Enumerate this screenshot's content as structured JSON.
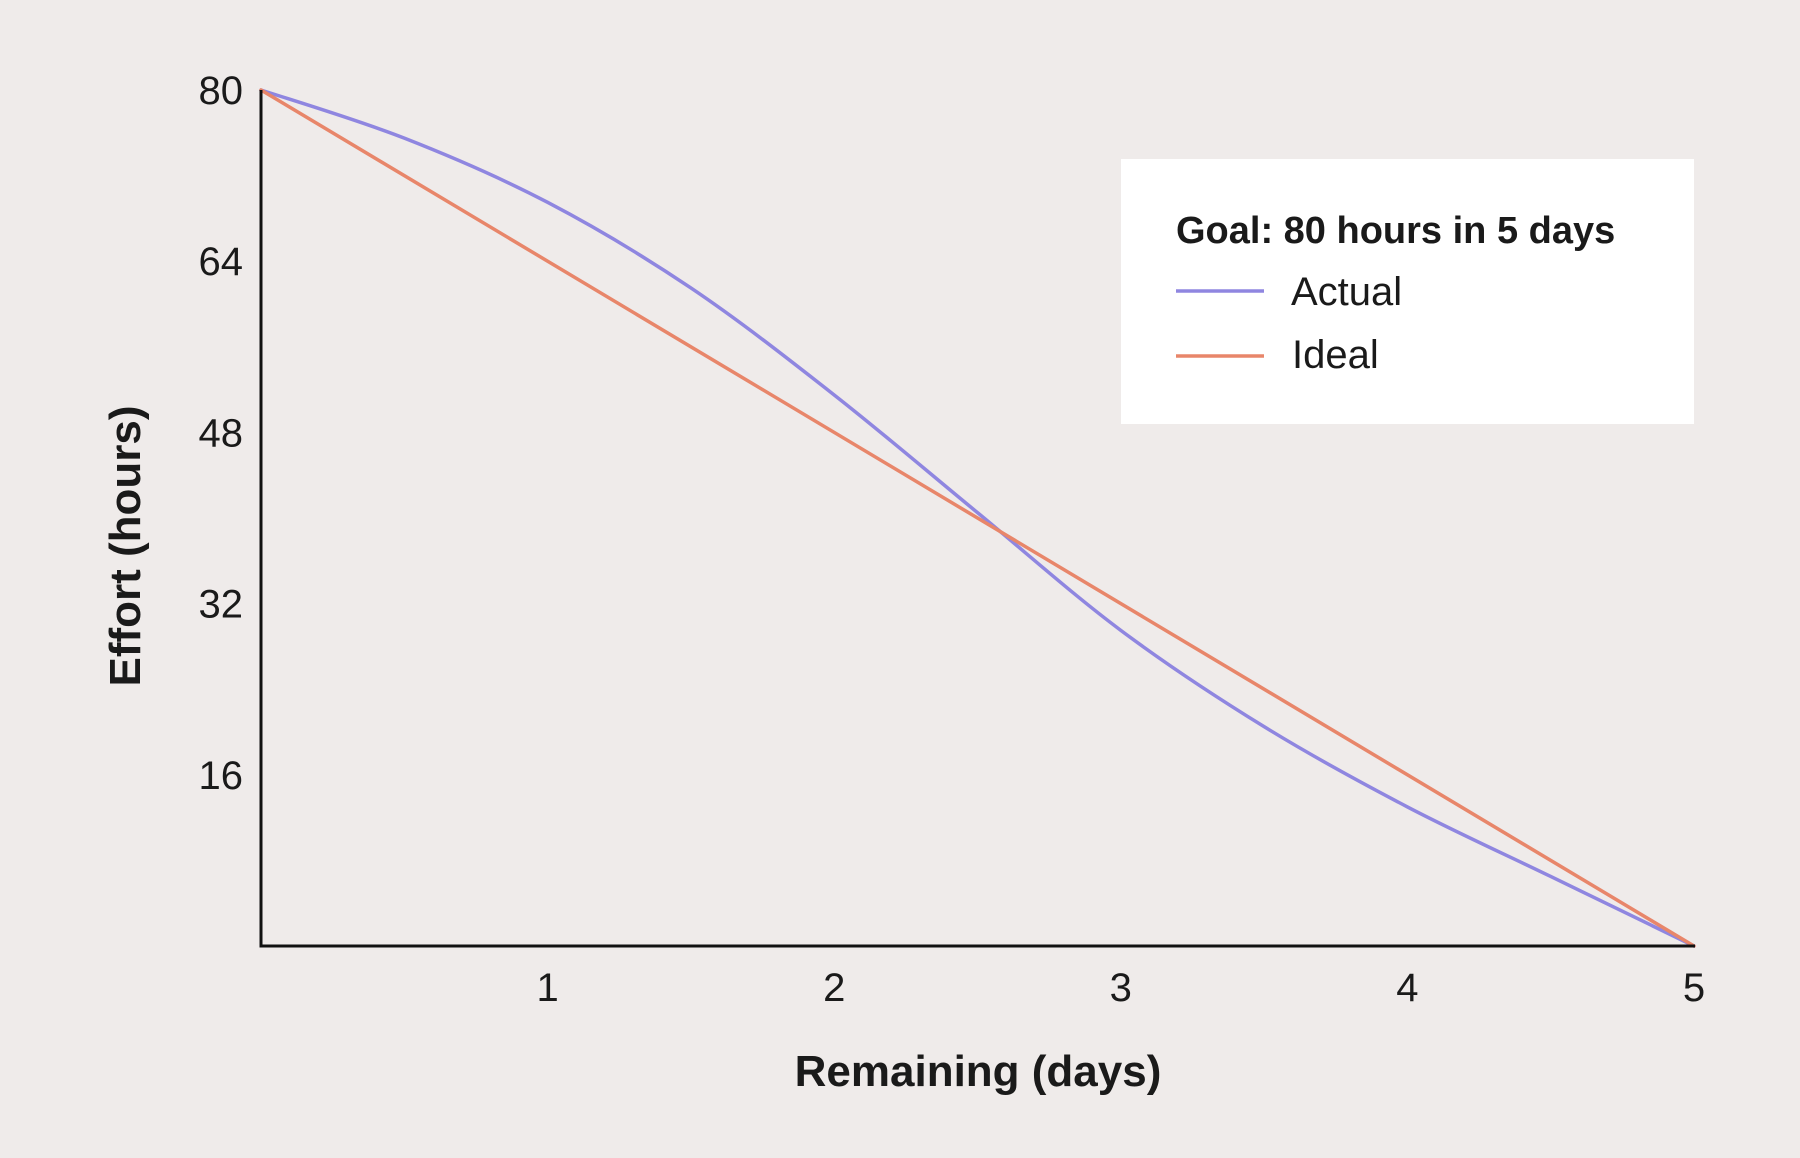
{
  "chart_data": {
    "type": "line",
    "title": "",
    "xlabel": "Remaining (days)",
    "ylabel": "Effort (hours)",
    "xlim": [
      0,
      5
    ],
    "ylim": [
      0,
      80
    ],
    "x_ticks": [
      "1",
      "2",
      "3",
      "4",
      "5"
    ],
    "y_ticks": [
      "16",
      "32",
      "48",
      "64",
      "80"
    ],
    "grid": false,
    "legend": {
      "title": "Goal: 80 hours in 5 days",
      "placement": "top-right"
    },
    "series": [
      {
        "name": "Actual",
        "color": "#8f86e0",
        "x": [
          0,
          0.5,
          1,
          1.5,
          2,
          2.5,
          3,
          3.5,
          4,
          4.5,
          5
        ],
        "y": [
          80,
          75.5,
          69.5,
          61.5,
          51.5,
          40.5,
          29.5,
          20.5,
          13,
          6.5,
          0
        ]
      },
      {
        "name": "Ideal",
        "color": "#e8866a",
        "x": [
          0,
          5
        ],
        "y": [
          80,
          0
        ]
      }
    ]
  }
}
